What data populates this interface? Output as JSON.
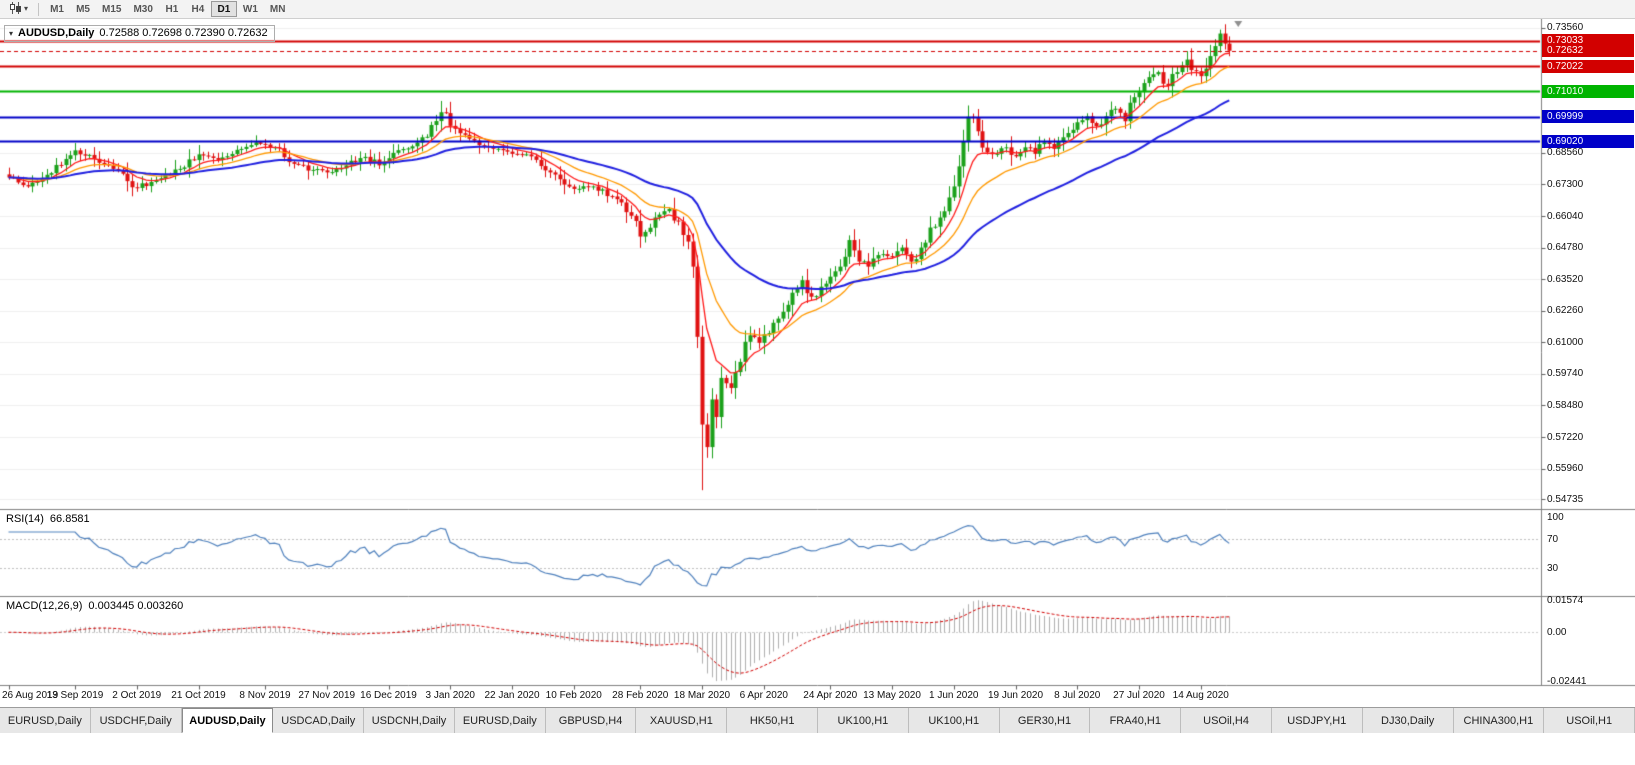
{
  "toolbar": {
    "chart_type_icon": "candlestick-chart",
    "dropdown_icon": "▾",
    "timeframes": [
      "M1",
      "M5",
      "M15",
      "M30",
      "H1",
      "H4",
      "D1",
      "W1",
      "MN"
    ],
    "active_timeframe": "D1"
  },
  "main_chart": {
    "title": "AUDUSD,Daily",
    "ohlc_text": "0.72588 0.72698 0.72390 0.72632",
    "menu_icon": "▾"
  },
  "rsi_panel": {
    "label": "RSI(14)",
    "value": "66.8581",
    "axis_labels": [
      {
        "v": 100,
        "label": "100"
      },
      {
        "v": 70,
        "label": "70"
      },
      {
        "v": 30,
        "label": "30"
      }
    ]
  },
  "macd_panel": {
    "label": "MACD(12,26,9)",
    "values": "0.003445 0.003260",
    "axis_labels": [
      "0.01574",
      "0.00",
      "-0.02441"
    ]
  },
  "price_axis": {
    "ticks": [
      {
        "v": 0.7356,
        "label": "0.73560"
      },
      {
        "v": 0.6856,
        "label": "0.68560"
      },
      {
        "v": 0.673,
        "label": "0.67300"
      },
      {
        "v": 0.6604,
        "label": "0.66040"
      },
      {
        "v": 0.6478,
        "label": "0.64780"
      },
      {
        "v": 0.6352,
        "label": "0.63520"
      },
      {
        "v": 0.6226,
        "label": "0.62260"
      },
      {
        "v": 0.61,
        "label": "0.61000"
      },
      {
        "v": 0.5974,
        "label": "0.59740"
      },
      {
        "v": 0.5848,
        "label": "0.58480"
      },
      {
        "v": 0.5722,
        "label": "0.57220"
      },
      {
        "v": 0.5596,
        "label": "0.55960"
      },
      {
        "v": 0.54735,
        "label": "0.54735"
      }
    ]
  },
  "time_axis": {
    "labels": [
      {
        "bar": 0,
        "label": "26 Aug 2019"
      },
      {
        "bar": 14,
        "label": "13 Sep 2019"
      },
      {
        "bar": 27,
        "label": "2 Oct 2019"
      },
      {
        "bar": 40,
        "label": "21 Oct 2019"
      },
      {
        "bar": 54,
        "label": "8 Nov 2019"
      },
      {
        "bar": 67,
        "label": "27 Nov 2019"
      },
      {
        "bar": 80,
        "label": "16 Dec 2019"
      },
      {
        "bar": 93,
        "label": "3 Jan 2020"
      },
      {
        "bar": 106,
        "label": "22 Jan 2020"
      },
      {
        "bar": 119,
        "label": "10 Feb 2020"
      },
      {
        "bar": 133,
        "label": "28 Feb 2020"
      },
      {
        "bar": 146,
        "label": "18 Mar 2020"
      },
      {
        "bar": 159,
        "label": "6 Apr 2020"
      },
      {
        "bar": 173,
        "label": "24 Apr 2020"
      },
      {
        "bar": 186,
        "label": "13 May 2020"
      },
      {
        "bar": 199,
        "label": "1 Jun 2020"
      },
      {
        "bar": 212,
        "label": "19 Jun 2020"
      },
      {
        "bar": 225,
        "label": "8 Jul 2020"
      },
      {
        "bar": 238,
        "label": "27 Jul 2020"
      },
      {
        "bar": 251,
        "label": "14 Aug 2020"
      }
    ]
  },
  "tabs": {
    "active_index": 2,
    "items": [
      "EURUSD,Daily",
      "USDCHF,Daily",
      "AUDUSD,Daily",
      "USDCAD,Daily",
      "USDCNH,Daily",
      "EURUSD,Daily",
      "GBPUSD,H4",
      "XAUUSD,H1",
      "HK50,H1",
      "UK100,H1",
      "UK100,H1",
      "GER30,H1",
      "FRA40,H1",
      "USOil,H4",
      "USDJPY,H1",
      "DJ30,Daily",
      "CHINA300,H1",
      "USOil,H1"
    ]
  },
  "chart_data": {
    "type": "candlestick",
    "symbol": "AUDUSD",
    "timeframe": "Daily",
    "last_ohlc": {
      "open": 0.72588,
      "high": 0.72698,
      "low": 0.7239,
      "close": 0.72632
    },
    "price_range": {
      "min": 0.5435,
      "max": 0.739
    },
    "bars": 258,
    "close_anchors": [
      [
        0,
        0.6758
      ],
      [
        4,
        0.6722
      ],
      [
        9,
        0.6775
      ],
      [
        14,
        0.6866
      ],
      [
        18,
        0.6832
      ],
      [
        22,
        0.6792
      ],
      [
        27,
        0.6716
      ],
      [
        31,
        0.6748
      ],
      [
        36,
        0.6792
      ],
      [
        40,
        0.685
      ],
      [
        44,
        0.6828
      ],
      [
        48,
        0.6868
      ],
      [
        52,
        0.6898
      ],
      [
        56,
        0.6878
      ],
      [
        60,
        0.6812
      ],
      [
        64,
        0.6788
      ],
      [
        67,
        0.6778
      ],
      [
        71,
        0.6806
      ],
      [
        75,
        0.684
      ],
      [
        78,
        0.6806
      ],
      [
        81,
        0.6856
      ],
      [
        85,
        0.6882
      ],
      [
        88,
        0.692
      ],
      [
        91,
        0.7018
      ],
      [
        94,
        0.6952
      ],
      [
        98,
        0.6905
      ],
      [
        102,
        0.6872
      ],
      [
        106,
        0.6852
      ],
      [
        110,
        0.6842
      ],
      [
        114,
        0.6778
      ],
      [
        119,
        0.6712
      ],
      [
        123,
        0.6722
      ],
      [
        127,
        0.6682
      ],
      [
        131,
        0.6605
      ],
      [
        133,
        0.6522
      ],
      [
        136,
        0.6598
      ],
      [
        139,
        0.6632
      ],
      [
        141,
        0.6582
      ],
      [
        143,
        0.6502
      ],
      [
        144,
        0.6402
      ],
      [
        145,
        0.6122
      ],
      [
        146,
        0.5772
      ],
      [
        147,
        0.5682
      ],
      [
        148,
        0.5872
      ],
      [
        149,
        0.5802
      ],
      [
        150,
        0.5958
      ],
      [
        152,
        0.5918
      ],
      [
        154,
        0.6022
      ],
      [
        156,
        0.6128
      ],
      [
        158,
        0.6098
      ],
      [
        159,
        0.6132
      ],
      [
        161,
        0.6178
      ],
      [
        163,
        0.6222
      ],
      [
        165,
        0.6298
      ],
      [
        167,
        0.6348
      ],
      [
        169,
        0.6282
      ],
      [
        171,
        0.6322
      ],
      [
        173,
        0.6362
      ],
      [
        175,
        0.6402
      ],
      [
        177,
        0.6508
      ],
      [
        179,
        0.6422
      ],
      [
        181,
        0.6402
      ],
      [
        183,
        0.6448
      ],
      [
        186,
        0.6442
      ],
      [
        188,
        0.6478
      ],
      [
        190,
        0.6422
      ],
      [
        192,
        0.6478
      ],
      [
        194,
        0.6558
      ],
      [
        196,
        0.6598
      ],
      [
        198,
        0.6678
      ],
      [
        199,
        0.6722
      ],
      [
        200,
        0.6802
      ],
      [
        202,
        0.7
      ],
      [
        204,
        0.6942
      ],
      [
        206,
        0.6858
      ],
      [
        208,
        0.6852
      ],
      [
        210,
        0.6878
      ],
      [
        212,
        0.6842
      ],
      [
        214,
        0.6878
      ],
      [
        216,
        0.6852
      ],
      [
        218,
        0.6898
      ],
      [
        220,
        0.6872
      ],
      [
        222,
        0.6918
      ],
      [
        224,
        0.6948
      ],
      [
        225,
        0.6978
      ],
      [
        227,
        0.7002
      ],
      [
        229,
        0.6962
      ],
      [
        231,
        0.7002
      ],
      [
        233,
        0.7032
      ],
      [
        235,
        0.6982
      ],
      [
        237,
        0.7078
      ],
      [
        238,
        0.7098
      ],
      [
        240,
        0.7158
      ],
      [
        242,
        0.7178
      ],
      [
        244,
        0.7122
      ],
      [
        246,
        0.7178
      ],
      [
        248,
        0.7228
      ],
      [
        250,
        0.7182
      ],
      [
        251,
        0.7162
      ],
      [
        252,
        0.7192
      ],
      [
        253,
        0.7242
      ],
      [
        254,
        0.7282
      ],
      [
        255,
        0.7332
      ],
      [
        256,
        0.7292
      ],
      [
        257,
        0.72632
      ]
    ],
    "special_low": {
      "bar": 146,
      "low": 0.551
    },
    "levels": [
      {
        "price": 0.73033,
        "label": "0.73033",
        "color": "#d20000",
        "line": "solid",
        "width": 2,
        "current": false
      },
      {
        "price": 0.72632,
        "label": "0.72632",
        "color": "#d20000",
        "line": "dashed",
        "width": 1,
        "current": true
      },
      {
        "price": 0.72022,
        "label": "0.72022",
        "color": "#d20000",
        "line": "solid",
        "width": 2,
        "current": false
      },
      {
        "price": 0.7101,
        "label": "0.71010",
        "color": "#00b400",
        "line": "solid",
        "width": 2,
        "current": false
      },
      {
        "price": 0.69999,
        "label": "0.69999",
        "color": "#0000c8",
        "line": "solid",
        "width": 2,
        "current": false
      },
      {
        "price": 0.6902,
        "label": "0.69020",
        "color": "#0000c8",
        "line": "solid",
        "width": 2,
        "current": false
      }
    ],
    "moving_averages": [
      {
        "name": "fast",
        "period": 8,
        "color": "#ff1a1a",
        "width": 1.3
      },
      {
        "name": "medium",
        "period": 18,
        "color": "#ff9900",
        "width": 1.3
      },
      {
        "name": "slow",
        "period": 45,
        "color": "#2020e0",
        "width": 2
      }
    ],
    "rsi": {
      "period": 14,
      "last": 66.8581,
      "levels": [
        70,
        30
      ]
    },
    "macd": {
      "fast": 12,
      "slow": 26,
      "signal": 9,
      "last_main": 0.003445,
      "last_signal": 0.00326
    },
    "colors": {
      "up": "#1ba11b",
      "down": "#e01212",
      "histogram": "#b0b0b0",
      "signal": "#d20000",
      "rsi": "#4f81bd",
      "grid": "#f0f0f0",
      "separator": "#808080",
      "axis_text": "#111111"
    }
  }
}
